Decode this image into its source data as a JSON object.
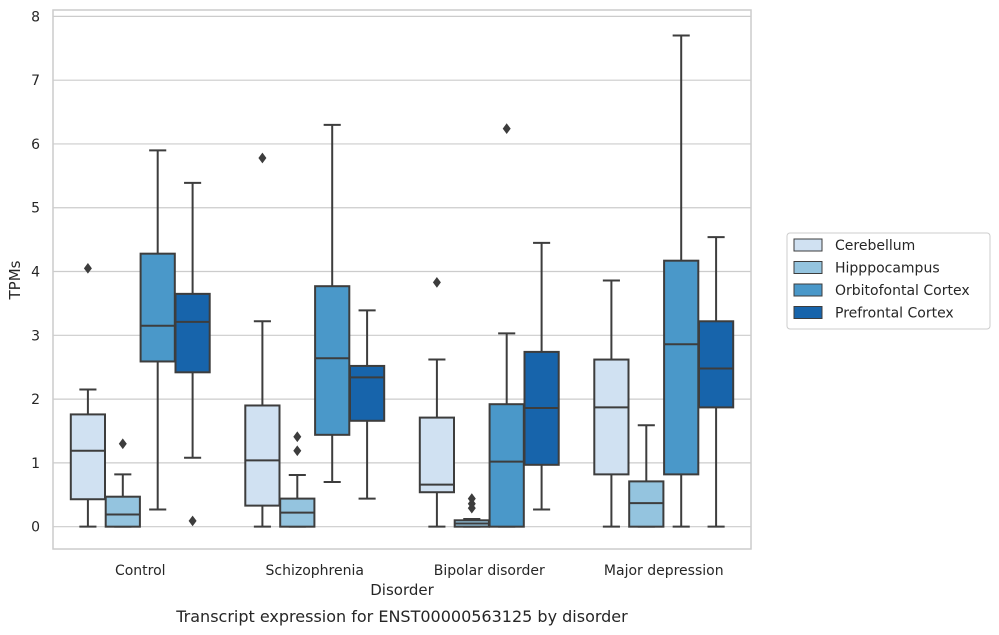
{
  "chart_data": {
    "type": "box",
    "title": "Transcript expression for ENST00000563125 by disorder",
    "xlabel": "Disorder",
    "ylabel": "TPMs",
    "ylim": [
      -0.35,
      8.1
    ],
    "yticks": [
      0,
      1,
      2,
      3,
      4,
      5,
      6,
      7,
      8
    ],
    "grid": true,
    "legend_position": "right",
    "categories": [
      "Control",
      "Schizophrenia",
      "Bipolar disorder",
      "Major depression"
    ],
    "series": [
      {
        "name": "Cerebellum",
        "color": "#d0e1f2",
        "boxes": [
          {
            "whisker_low": 0.0,
            "q1": 0.43,
            "median": 1.19,
            "q3": 1.76,
            "whisker_high": 2.15,
            "outliers": [
              4.05
            ]
          },
          {
            "whisker_low": 0.0,
            "q1": 0.33,
            "median": 1.04,
            "q3": 1.9,
            "whisker_high": 3.22,
            "outliers": [
              5.78
            ]
          },
          {
            "whisker_low": 0.0,
            "q1": 0.54,
            "median": 0.66,
            "q3": 1.71,
            "whisker_high": 2.62,
            "outliers": [
              3.83
            ]
          },
          {
            "whisker_low": 0.0,
            "q1": 0.82,
            "median": 1.87,
            "q3": 2.62,
            "whisker_high": 3.86,
            "outliers": []
          }
        ]
      },
      {
        "name": "Hipppocampus",
        "color": "#94c4df",
        "boxes": [
          {
            "whisker_low": 0.0,
            "q1": 0.0,
            "median": 0.19,
            "q3": 0.47,
            "whisker_high": 0.82,
            "outliers": [
              1.3
            ]
          },
          {
            "whisker_low": 0.0,
            "q1": 0.0,
            "median": 0.22,
            "q3": 0.44,
            "whisker_high": 0.81,
            "outliers": [
              1.19,
              1.41
            ]
          },
          {
            "whisker_low": 0.0,
            "q1": 0.0,
            "median": 0.05,
            "q3": 0.1,
            "whisker_high": 0.12,
            "outliers": [
              0.29,
              0.36,
              0.44
            ]
          },
          {
            "whisker_low": 0.0,
            "q1": 0.0,
            "median": 0.37,
            "q3": 0.71,
            "whisker_high": 1.59,
            "outliers": []
          }
        ]
      },
      {
        "name": "Orbitofontal Cortex",
        "color": "#4a98c9",
        "boxes": [
          {
            "whisker_low": 0.27,
            "q1": 2.59,
            "median": 3.15,
            "q3": 4.28,
            "whisker_high": 5.9,
            "outliers": []
          },
          {
            "whisker_low": 0.7,
            "q1": 1.44,
            "median": 2.64,
            "q3": 3.77,
            "whisker_high": 6.3,
            "outliers": []
          },
          {
            "whisker_low": 0.0,
            "q1": 0.0,
            "median": 1.02,
            "q3": 1.92,
            "whisker_high": 3.03,
            "outliers": [
              6.24
            ]
          },
          {
            "whisker_low": 0.0,
            "q1": 0.82,
            "median": 2.86,
            "q3": 4.17,
            "whisker_high": 7.7,
            "outliers": []
          }
        ]
      },
      {
        "name": "Prefrontal Cortex",
        "color": "#1764ab",
        "boxes": [
          {
            "whisker_low": 1.08,
            "q1": 2.42,
            "median": 3.21,
            "q3": 3.65,
            "whisker_high": 5.39,
            "outliers": [
              0.09
            ]
          },
          {
            "whisker_low": 0.44,
            "q1": 1.66,
            "median": 2.34,
            "q3": 2.52,
            "whisker_high": 3.39,
            "outliers": []
          },
          {
            "whisker_low": 0.27,
            "q1": 0.97,
            "median": 1.86,
            "q3": 2.74,
            "whisker_high": 4.45,
            "outliers": []
          },
          {
            "whisker_low": 0.0,
            "q1": 1.87,
            "median": 2.48,
            "q3": 3.22,
            "whisker_high": 4.54,
            "outliers": []
          }
        ]
      }
    ]
  }
}
